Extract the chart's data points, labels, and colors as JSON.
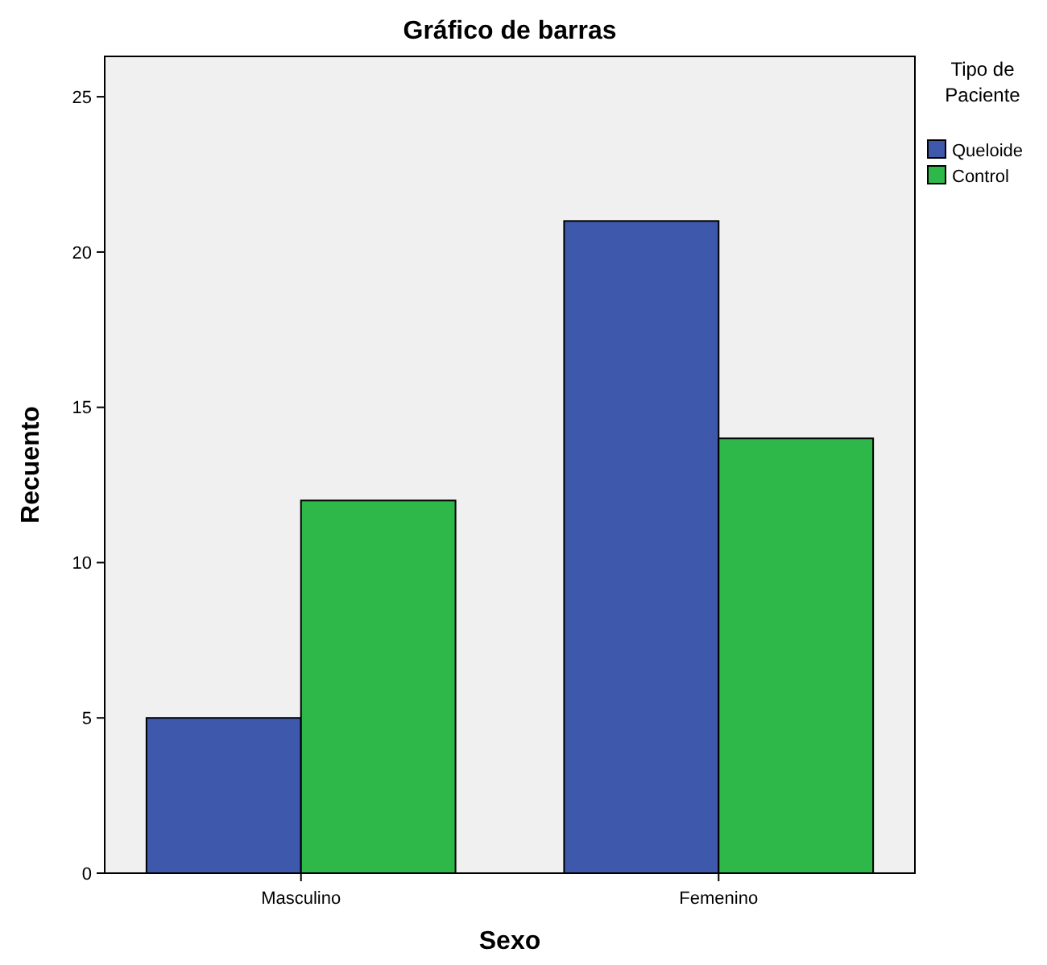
{
  "chart_data": {
    "type": "bar",
    "title": "Gráfico de barras",
    "xlabel": "Sexo",
    "ylabel": "Recuento",
    "legend_title": "Tipo de Paciente",
    "categories": [
      "Masculino",
      "Femenino"
    ],
    "series": [
      {
        "name": "Queloide",
        "color": "#3e58ac",
        "values": [
          5,
          21
        ]
      },
      {
        "name": "Control",
        "color": "#2eb84a",
        "values": [
          12,
          14
        ]
      }
    ],
    "ylim": [
      0,
      26.3
    ],
    "yticks": [
      0,
      5,
      10,
      15,
      20,
      25
    ],
    "grid": false,
    "legend": "right"
  }
}
